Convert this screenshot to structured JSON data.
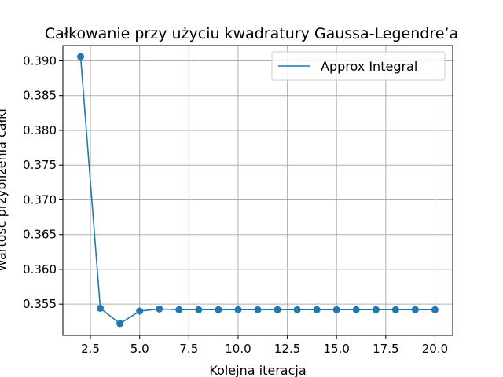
{
  "chart_data": {
    "type": "line",
    "title": "Całkowanie przy użyciu kwadratury Gaussa-Legendre’a",
    "xlabel": "Kolejna iteracja",
    "ylabel": "Wartość przybliżenia całki",
    "xlim": [
      1.1,
      20.9
    ],
    "ylim": [
      0.3505,
      0.3922
    ],
    "x_ticks": [
      2.5,
      5.0,
      7.5,
      10.0,
      12.5,
      15.0,
      17.5,
      20.0
    ],
    "x_tick_labels": [
      "2.5",
      "5.0",
      "7.5",
      "10.0",
      "12.5",
      "15.0",
      "17.5",
      "20.0"
    ],
    "y_ticks": [
      0.355,
      0.36,
      0.365,
      0.37,
      0.375,
      0.38,
      0.385,
      0.39
    ],
    "y_tick_labels": [
      "0.355",
      "0.360",
      "0.365",
      "0.370",
      "0.375",
      "0.380",
      "0.385",
      "0.390"
    ],
    "grid": true,
    "legend_position": "top-right",
    "series": [
      {
        "name": "Approx Integral",
        "color": "#1f77b4",
        "x": [
          2,
          3,
          4,
          5,
          6,
          7,
          8,
          9,
          10,
          11,
          12,
          13,
          14,
          15,
          16,
          17,
          18,
          19,
          20
        ],
        "y": [
          0.3906,
          0.3544,
          0.3522,
          0.354,
          0.3543,
          0.3542,
          0.3542,
          0.3542,
          0.3542,
          0.3542,
          0.3542,
          0.3542,
          0.3542,
          0.3542,
          0.3542,
          0.3542,
          0.3542,
          0.3542,
          0.3542
        ]
      }
    ]
  }
}
